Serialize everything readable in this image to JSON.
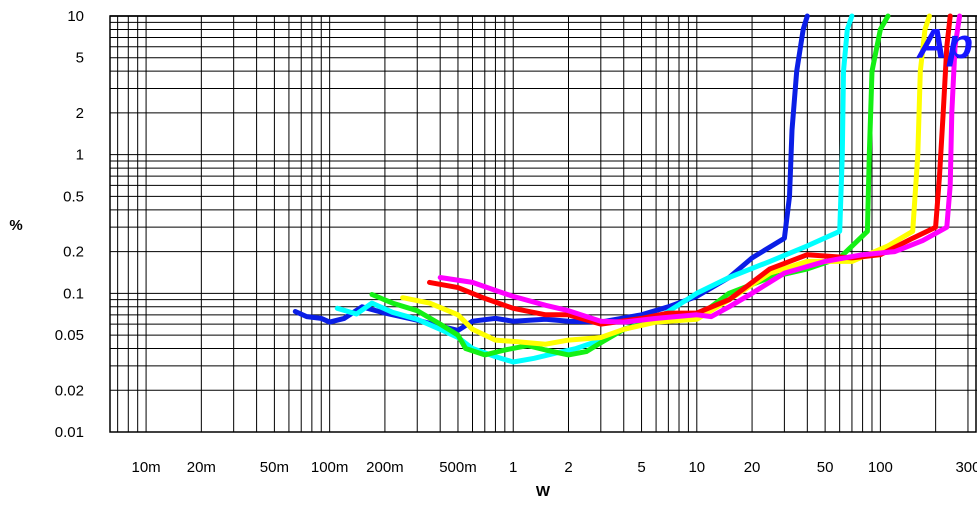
{
  "chart_data": {
    "type": "line",
    "title": "",
    "xlabel": "W",
    "ylabel": "%",
    "x_scale": "log",
    "y_scale": "log",
    "xlim": [
      0.00636,
      336
    ],
    "ylim": [
      0.01,
      10
    ],
    "grid": true,
    "legend": "none",
    "logo_text": "Ap",
    "logo_color": "#1515ff",
    "x_ticks": [
      {
        "v": 0.01,
        "label": "10m"
      },
      {
        "v": 0.02,
        "label": "20m"
      },
      {
        "v": 0.05,
        "label": "50m"
      },
      {
        "v": 0.1,
        "label": "100m"
      },
      {
        "v": 0.2,
        "label": "200m"
      },
      {
        "v": 0.5,
        "label": "500m"
      },
      {
        "v": 1,
        "label": "1"
      },
      {
        "v": 2,
        "label": "2"
      },
      {
        "v": 5,
        "label": "5"
      },
      {
        "v": 10,
        "label": "10"
      },
      {
        "v": 20,
        "label": "20"
      },
      {
        "v": 50,
        "label": "50"
      },
      {
        "v": 100,
        "label": "100"
      },
      {
        "v": 300,
        "label": "300"
      }
    ],
    "y_ticks": [
      {
        "v": 0.01,
        "label": "0.01"
      },
      {
        "v": 0.02,
        "label": "0.02"
      },
      {
        "v": 0.05,
        "label": "0.05"
      },
      {
        "v": 0.1,
        "label": "0.1"
      },
      {
        "v": 0.2,
        "label": "0.2"
      },
      {
        "v": 0.5,
        "label": "0.5"
      },
      {
        "v": 1,
        "label": "1"
      },
      {
        "v": 2,
        "label": "2"
      },
      {
        "v": 5,
        "label": "5"
      },
      {
        "v": 10,
        "label": "10"
      }
    ],
    "series": [
      {
        "color": "#0a1ee6",
        "points": [
          [
            0.065,
            0.074
          ],
          [
            0.075,
            0.068
          ],
          [
            0.09,
            0.066
          ],
          [
            0.1,
            0.062
          ],
          [
            0.12,
            0.066
          ],
          [
            0.15,
            0.08
          ],
          [
            0.2,
            0.072
          ],
          [
            0.3,
            0.064
          ],
          [
            0.4,
            0.058
          ],
          [
            0.5,
            0.054
          ],
          [
            0.6,
            0.063
          ],
          [
            0.8,
            0.066
          ],
          [
            1,
            0.063
          ],
          [
            1.5,
            0.065
          ],
          [
            2,
            0.063
          ],
          [
            3,
            0.062
          ],
          [
            5,
            0.07
          ],
          [
            7,
            0.08
          ],
          [
            10,
            0.095
          ],
          [
            15,
            0.13
          ],
          [
            20,
            0.18
          ],
          [
            30,
            0.25
          ],
          [
            32,
            0.5
          ],
          [
            33,
            1.5
          ],
          [
            35,
            4
          ],
          [
            38,
            8
          ],
          [
            40,
            10
          ]
        ]
      },
      {
        "color": "#00ffff",
        "points": [
          [
            0.11,
            0.078
          ],
          [
            0.14,
            0.071
          ],
          [
            0.17,
            0.085
          ],
          [
            0.22,
            0.073
          ],
          [
            0.3,
            0.065
          ],
          [
            0.4,
            0.055
          ],
          [
            0.5,
            0.048
          ],
          [
            0.6,
            0.04
          ],
          [
            0.8,
            0.035
          ],
          [
            1,
            0.032
          ],
          [
            1.3,
            0.034
          ],
          [
            1.7,
            0.037
          ],
          [
            2.2,
            0.04
          ],
          [
            3,
            0.046
          ],
          [
            4,
            0.055
          ],
          [
            6,
            0.065
          ],
          [
            10,
            0.1
          ],
          [
            15,
            0.13
          ],
          [
            25,
            0.17
          ],
          [
            40,
            0.22
          ],
          [
            60,
            0.28
          ],
          [
            62,
            1
          ],
          [
            63,
            4
          ],
          [
            66,
            8
          ],
          [
            70,
            10
          ]
        ]
      },
      {
        "color": "#14f014",
        "points": [
          [
            0.17,
            0.098
          ],
          [
            0.22,
            0.085
          ],
          [
            0.3,
            0.075
          ],
          [
            0.4,
            0.06
          ],
          [
            0.5,
            0.05
          ],
          [
            0.55,
            0.04
          ],
          [
            0.7,
            0.036
          ],
          [
            0.9,
            0.039
          ],
          [
            1.2,
            0.042
          ],
          [
            1.5,
            0.039
          ],
          [
            2,
            0.036
          ],
          [
            2.5,
            0.038
          ],
          [
            3,
            0.044
          ],
          [
            4,
            0.055
          ],
          [
            6,
            0.064
          ],
          [
            10,
            0.067
          ],
          [
            15,
            0.1
          ],
          [
            25,
            0.13
          ],
          [
            40,
            0.15
          ],
          [
            60,
            0.18
          ],
          [
            85,
            0.28
          ],
          [
            87,
            1
          ],
          [
            90,
            4
          ],
          [
            100,
            8
          ],
          [
            110,
            10
          ]
        ]
      },
      {
        "color": "#ffff00",
        "points": [
          [
            0.25,
            0.093
          ],
          [
            0.35,
            0.085
          ],
          [
            0.5,
            0.07
          ],
          [
            0.6,
            0.055
          ],
          [
            0.8,
            0.046
          ],
          [
            1,
            0.045
          ],
          [
            1.5,
            0.043
          ],
          [
            2,
            0.046
          ],
          [
            3,
            0.048
          ],
          [
            4,
            0.055
          ],
          [
            6,
            0.062
          ],
          [
            10,
            0.065
          ],
          [
            15,
            0.09
          ],
          [
            25,
            0.14
          ],
          [
            40,
            0.17
          ],
          [
            70,
            0.17
          ],
          [
            110,
            0.22
          ],
          [
            150,
            0.28
          ],
          [
            160,
            1
          ],
          [
            165,
            4
          ],
          [
            175,
            8
          ],
          [
            185,
            10
          ]
        ]
      },
      {
        "color": "#ff0000",
        "points": [
          [
            0.35,
            0.12
          ],
          [
            0.5,
            0.11
          ],
          [
            0.7,
            0.092
          ],
          [
            1,
            0.078
          ],
          [
            1.5,
            0.07
          ],
          [
            2,
            0.07
          ],
          [
            3,
            0.06
          ],
          [
            5,
            0.066
          ],
          [
            7,
            0.072
          ],
          [
            10,
            0.072
          ],
          [
            15,
            0.09
          ],
          [
            25,
            0.15
          ],
          [
            40,
            0.19
          ],
          [
            70,
            0.18
          ],
          [
            100,
            0.19
          ],
          [
            150,
            0.25
          ],
          [
            200,
            0.3
          ],
          [
            210,
            0.7
          ],
          [
            220,
            2
          ],
          [
            230,
            6
          ],
          [
            240,
            10
          ]
        ]
      },
      {
        "color": "#ff00ff",
        "points": [
          [
            0.4,
            0.13
          ],
          [
            0.6,
            0.12
          ],
          [
            0.8,
            0.105
          ],
          [
            1,
            0.095
          ],
          [
            1.5,
            0.082
          ],
          [
            2,
            0.075
          ],
          [
            3,
            0.063
          ],
          [
            4,
            0.062
          ],
          [
            6,
            0.066
          ],
          [
            10,
            0.07
          ],
          [
            12,
            0.068
          ],
          [
            15,
            0.08
          ],
          [
            20,
            0.1
          ],
          [
            30,
            0.14
          ],
          [
            50,
            0.17
          ],
          [
            80,
            0.19
          ],
          [
            120,
            0.2
          ],
          [
            170,
            0.24
          ],
          [
            230,
            0.3
          ],
          [
            240,
            0.6
          ],
          [
            245,
            2
          ],
          [
            255,
            6
          ],
          [
            270,
            10
          ]
        ]
      }
    ]
  }
}
